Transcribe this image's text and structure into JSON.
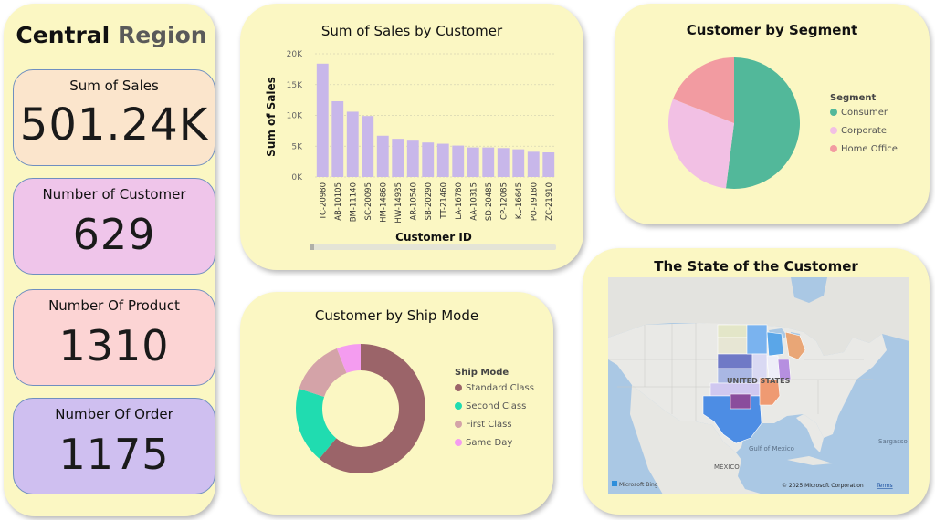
{
  "header": {
    "title_part1": "Central",
    "title_part2": "Region"
  },
  "colors": {
    "panel_bg": "#fbf7c3",
    "kpi_sales": "#fbe5cc",
    "kpi_customers": "#efc5ea",
    "kpi_products": "#fcd4d4",
    "kpi_orders": "#cfbff0",
    "bar": "#c8b7ea"
  },
  "kpis": {
    "sales": {
      "label": "Sum of Sales",
      "value": "501.24K"
    },
    "customers": {
      "label": "Number of Customer",
      "value": "629"
    },
    "products": {
      "label": "Number Of Product",
      "value": "1310"
    },
    "orders": {
      "label": "Number Of Order",
      "value": "1175"
    }
  },
  "sales_chart": {
    "title": "Sum of Sales by Customer",
    "ylabel": "Sum of Sales",
    "xlabel": "Customer ID",
    "y_ticks": [
      "0K",
      "5K",
      "10K",
      "15K",
      "20K"
    ]
  },
  "segment_chart": {
    "title": "Customer by Segment",
    "legend_title": "Segment",
    "legend": [
      "Consumer",
      "Corporate",
      "Home Office"
    ]
  },
  "shipmode_chart": {
    "title": "Customer by Ship Mode",
    "legend_title": "Ship Mode",
    "legend": [
      "Standard Class",
      "Second Class",
      "First Class",
      "Same Day"
    ]
  },
  "map": {
    "title": "The State of the Customer",
    "label_country": "UNITED STATES",
    "label_gulf": "Gulf of Mexico",
    "label_mexico": "MÉXICO",
    "label_sargasso": "Sargasso Se",
    "attribution_brand": "Microsoft Bing",
    "attribution_copyright": "© 2025 Microsoft Corporation",
    "attribution_terms": "Terms"
  },
  "chart_data": [
    {
      "type": "bar",
      "title": "Sum of Sales by Customer",
      "xlabel": "Customer ID",
      "ylabel": "Sum of Sales",
      "categories": [
        "TC-20980",
        "AB-10105",
        "BM-11140",
        "SC-20095",
        "HM-14860",
        "HW-14935",
        "AR-10540",
        "SB-20290",
        "TT-21460",
        "LA-16780",
        "AA-10315",
        "SD-20485",
        "CP-12085",
        "KL-16645",
        "PO-19180",
        "ZC-21910"
      ],
      "values": [
        18400,
        12300,
        10600,
        9900,
        6700,
        6200,
        5900,
        5600,
        5400,
        5100,
        4800,
        4800,
        4700,
        4500,
        4100,
        4000
      ],
      "ylim": [
        0,
        20000
      ],
      "grid": true
    },
    {
      "type": "pie",
      "title": "Customer by Segment",
      "labels": [
        "Consumer",
        "Corporate",
        "Home Office"
      ],
      "values": [
        52,
        29,
        19
      ],
      "colors": [
        "#52b89a",
        "#f2c0e4",
        "#f29ba1"
      ],
      "legend": "right"
    },
    {
      "type": "pie",
      "title": "Customer by Ship Mode",
      "labels": [
        "Standard Class",
        "Second Class",
        "First Class",
        "Same Day"
      ],
      "values": [
        61,
        19,
        14,
        6
      ],
      "colors": [
        "#9b6469",
        "#20dcb0",
        "#d4a3a8",
        "#f49cf0"
      ],
      "legend": "right"
    }
  ]
}
